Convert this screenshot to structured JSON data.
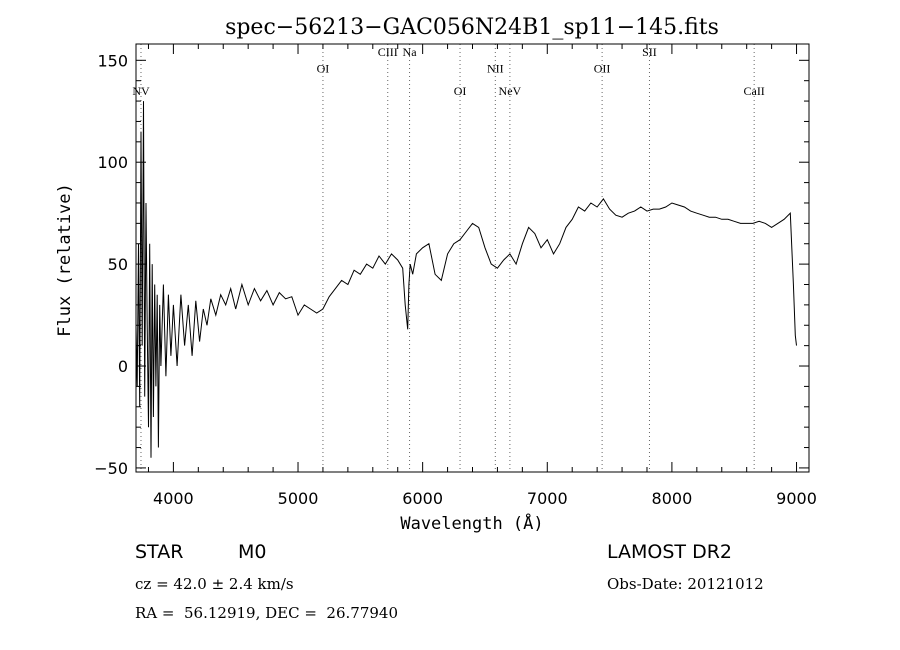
{
  "chart_data": {
    "type": "line",
    "title": "spec−56213−GAC056N24B1_sp11−145.fits",
    "xlabel": "Wavelength (Å)",
    "ylabel": "Flux (relative)",
    "xlim": [
      3700,
      9100
    ],
    "ylim": [
      -52,
      158
    ],
    "x_ticks": [
      4000,
      5000,
      6000,
      7000,
      8000,
      9000
    ],
    "y_ticks": [
      -50,
      0,
      50,
      100,
      150
    ],
    "y_tick_labels": [
      "−50",
      "0",
      "50",
      "100",
      "150"
    ],
    "grid": false,
    "series": [
      {
        "color": "#000000",
        "x": [
          3700,
          3710,
          3720,
          3730,
          3740,
          3750,
          3760,
          3770,
          3780,
          3790,
          3800,
          3810,
          3820,
          3830,
          3840,
          3850,
          3860,
          3870,
          3880,
          3890,
          3900,
          3920,
          3940,
          3960,
          3980,
          4000,
          4030,
          4060,
          4090,
          4120,
          4150,
          4180,
          4210,
          4240,
          4270,
          4300,
          4340,
          4380,
          4420,
          4460,
          4500,
          4550,
          4600,
          4650,
          4700,
          4750,
          4800,
          4850,
          4900,
          4950,
          5000,
          5050,
          5100,
          5150,
          5200,
          5250,
          5300,
          5350,
          5400,
          5450,
          5500,
          5550,
          5600,
          5650,
          5700,
          5750,
          5800,
          5840,
          5860,
          5880,
          5890,
          5900,
          5920,
          5950,
          6000,
          6050,
          6100,
          6150,
          6200,
          6250,
          6300,
          6350,
          6400,
          6450,
          6500,
          6550,
          6600,
          6650,
          6700,
          6750,
          6800,
          6850,
          6900,
          6950,
          7000,
          7050,
          7100,
          7150,
          7200,
          7250,
          7300,
          7350,
          7400,
          7450,
          7500,
          7550,
          7600,
          7650,
          7700,
          7750,
          7800,
          7850,
          7900,
          7950,
          8000,
          8050,
          8100,
          8150,
          8200,
          8250,
          8300,
          8350,
          8400,
          8450,
          8500,
          8550,
          8600,
          8650,
          8700,
          8750,
          8800,
          8850,
          8900,
          8950,
          8975,
          8990,
          9000
        ],
        "y": [
          20,
          -10,
          60,
          -20,
          115,
          10,
          130,
          -15,
          80,
          20,
          -30,
          60,
          -45,
          50,
          -25,
          40,
          -10,
          35,
          -40,
          30,
          0,
          40,
          -5,
          35,
          5,
          30,
          0,
          35,
          10,
          30,
          5,
          32,
          12,
          28,
          20,
          33,
          25,
          35,
          30,
          38,
          28,
          40,
          30,
          38,
          32,
          37,
          30,
          36,
          33,
          34,
          25,
          30,
          28,
          26,
          28,
          34,
          38,
          42,
          40,
          47,
          45,
          50,
          48,
          54,
          50,
          55,
          52,
          48,
          30,
          18,
          40,
          50,
          45,
          55,
          58,
          60,
          45,
          42,
          55,
          60,
          62,
          66,
          70,
          68,
          58,
          50,
          48,
          52,
          55,
          50,
          60,
          68,
          65,
          58,
          62,
          55,
          60,
          68,
          72,
          78,
          76,
          80,
          78,
          82,
          77,
          74,
          73,
          75,
          76,
          78,
          76,
          77,
          77,
          78,
          80,
          79,
          78,
          76,
          75,
          74,
          73,
          73,
          72,
          72,
          71,
          70,
          70,
          70,
          71,
          70,
          68,
          70,
          72,
          75,
          40,
          15,
          10
        ]
      }
    ],
    "line_markers": [
      {
        "label": "NV",
        "x": 3740,
        "label_y": 133
      },
      {
        "label": "OI",
        "x": 5200,
        "label_y": 144
      },
      {
        "label": "CIII",
        "x": 5720,
        "label_y": 152
      },
      {
        "label": "Na",
        "x": 5895,
        "label_y": 152
      },
      {
        "label": "OI",
        "x": 6300,
        "label_y": 133
      },
      {
        "label": "NII",
        "x": 6583,
        "label_y": 144
      },
      {
        "label": "NeV",
        "x": 6700,
        "label_y": 133
      },
      {
        "label": "OII",
        "x": 7440,
        "label_y": 144
      },
      {
        "label": "SII",
        "x": 7820,
        "label_y": 152
      },
      {
        "label": "CaII",
        "x": 8660,
        "label_y": 133
      }
    ]
  },
  "info": {
    "class_label": "STAR",
    "subclass": "M0",
    "survey": "LAMOST DR2",
    "cz": "cz = 42.0 ± 2.4 km/s",
    "obs_date": "Obs-Date: 20121012",
    "coords": "RA =  56.12919, DEC =  26.77940"
  }
}
